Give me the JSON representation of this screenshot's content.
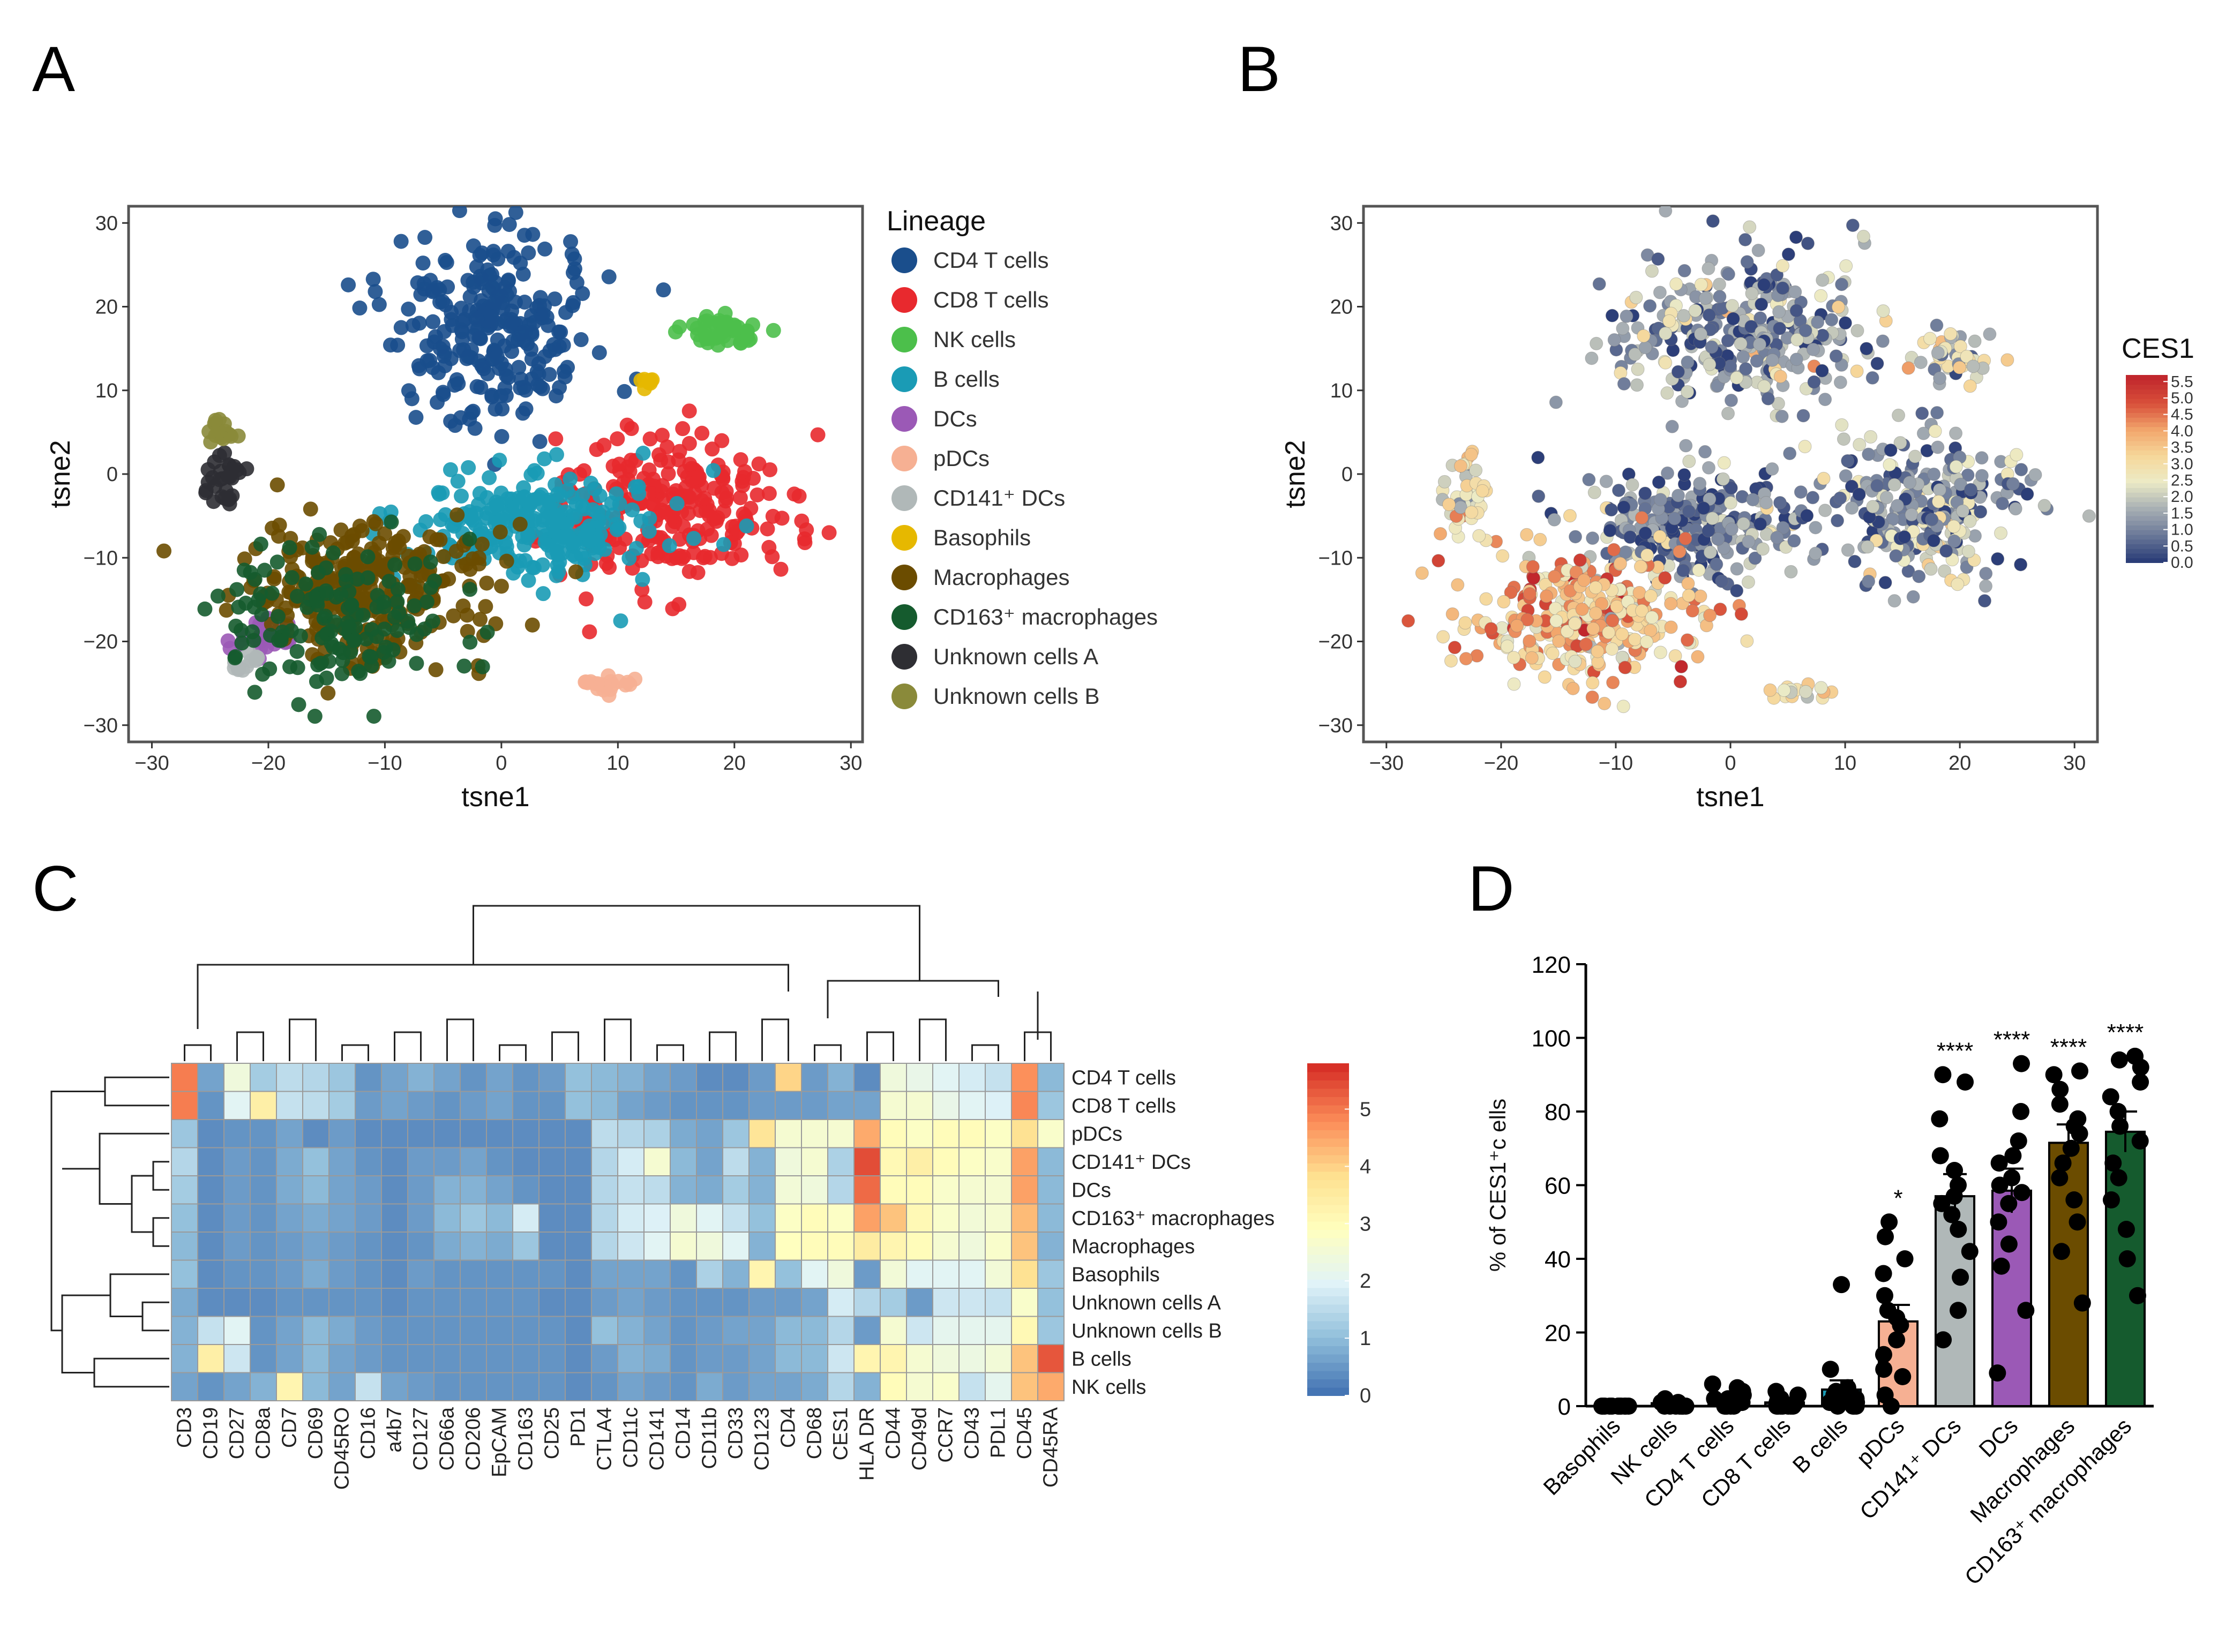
{
  "panels": {
    "a": {
      "letter": "A"
    },
    "b": {
      "letter": "B"
    },
    "c": {
      "letter": "C"
    },
    "d": {
      "letter": "D"
    }
  },
  "chart_data": [
    {
      "id": "A",
      "type": "scatter",
      "title": "",
      "xlabel": "tsne1",
      "ylabel": "tsne2",
      "xlim": [
        -32,
        31
      ],
      "ylim": [
        -32,
        32
      ],
      "xticks": [
        -30,
        -20,
        -10,
        0,
        10,
        20,
        30
      ],
      "yticks": [
        -30,
        -20,
        -10,
        0,
        10,
        20,
        30
      ],
      "legend_title": "Lineage",
      "legend_position": "right",
      "clusters": [
        {
          "name": "CD4 T cells",
          "color": "#1a4e8c",
          "cx": -1,
          "cy": 17,
          "rx": 10,
          "ry": 12,
          "n": 260
        },
        {
          "name": "CD8 T cells",
          "color": "#e8292e",
          "cx": 15,
          "cy": -4,
          "rx": 11,
          "ry": 10,
          "n": 240
        },
        {
          "name": "NK cells",
          "color": "#4cbf4b",
          "cx": 19,
          "cy": 17,
          "rx": 4,
          "ry": 2.5,
          "n": 50
        },
        {
          "name": "B cells",
          "color": "#1a9bb5",
          "cx": 3,
          "cy": -6,
          "rx": 12,
          "ry": 7,
          "n": 240
        },
        {
          "name": "DCs",
          "color": "#9b59b6",
          "cx": -20,
          "cy": -20,
          "rx": 3,
          "ry": 3,
          "n": 30
        },
        {
          "name": "pDCs",
          "color": "#f6b093",
          "cx": 9,
          "cy": -25,
          "rx": 2.5,
          "ry": 1.2,
          "n": 20
        },
        {
          "name": "CD141⁺ DCs",
          "color": "#b0b8b8",
          "cx": -22,
          "cy": -22,
          "rx": 1.5,
          "ry": 1.5,
          "n": 10
        },
        {
          "name": "Basophils",
          "color": "#e6b800",
          "cx": 12.5,
          "cy": 11,
          "rx": 1.2,
          "ry": 0.8,
          "n": 8
        },
        {
          "name": "Macrophages",
          "color": "#6b4c00",
          "cx": -12,
          "cy": -14,
          "rx": 12,
          "ry": 9,
          "n": 300
        },
        {
          "name": "CD163⁺ macrophages",
          "color": "#155b2e",
          "cx": -14,
          "cy": -17,
          "rx": 10,
          "ry": 10,
          "n": 140
        },
        {
          "name": "Unknown cells A",
          "color": "#2e2e33",
          "cx": -24,
          "cy": -1,
          "rx": 2,
          "ry": 3,
          "n": 30
        },
        {
          "name": "Unknown cells B",
          "color": "#8a8a3a",
          "cx": -24,
          "cy": 5,
          "rx": 1.5,
          "ry": 2,
          "n": 18
        }
      ]
    },
    {
      "id": "B",
      "type": "scatter",
      "title": "",
      "xlabel": "tsne1",
      "ylabel": "tsne2",
      "xlim": [
        -32,
        32
      ],
      "ylim": [
        -32,
        32
      ],
      "xticks": [
        -30,
        -20,
        -10,
        0,
        10,
        20,
        30
      ],
      "yticks": [
        -30,
        -20,
        -10,
        0,
        10,
        20,
        30
      ],
      "colorbar_title": "CES1",
      "colorbar_ticks": [
        "0.0",
        "0.5",
        "1.0",
        "1.5",
        "2.0",
        "2.5",
        "3.0",
        "3.5",
        "4.0",
        "4.5",
        "5.0",
        "5.5"
      ],
      "colorbar_range": [
        0,
        5.7
      ],
      "colormap": [
        "#2c3e78",
        "#6c7a99",
        "#a9b0b4",
        "#ecebc6",
        "#f6d79a",
        "#f2a66c",
        "#d8503a",
        "#c1272d"
      ],
      "regions": [
        {
          "name": "upper cluster",
          "cx": 1,
          "cy": 17,
          "rx": 12,
          "ry": 11,
          "mean": 1.2,
          "n": 320
        },
        {
          "name": "right cluster",
          "cx": 17,
          "cy": -4,
          "rx": 10,
          "ry": 10,
          "mean": 1.3,
          "n": 260
        },
        {
          "name": "middle cluster",
          "cx": -3,
          "cy": -6,
          "rx": 12,
          "ry": 7,
          "mean": 0.8,
          "n": 260
        },
        {
          "name": "lower-left cluster",
          "cx": -12,
          "cy": -17,
          "rx": 11,
          "ry": 9,
          "mean": 3.6,
          "n": 320
        },
        {
          "name": "left edge",
          "cx": -23,
          "cy": -3,
          "rx": 2,
          "ry": 6,
          "mean": 2.5,
          "n": 50
        },
        {
          "name": "upper-right small",
          "cx": 19,
          "cy": 14,
          "rx": 4,
          "ry": 3,
          "mean": 1.8,
          "n": 50
        },
        {
          "name": "bottom small",
          "cx": 6,
          "cy": -26,
          "rx": 3,
          "ry": 1.2,
          "mean": 2.8,
          "n": 18
        }
      ]
    },
    {
      "id": "C",
      "type": "heatmap",
      "title": "",
      "columns": [
        "CD3",
        "CD19",
        "CD27",
        "CD8a",
        "CD7",
        "CD69",
        "CD45RO",
        "CD16",
        "a4b7",
        "CD127",
        "CD66a",
        "CD206",
        "EpCAM",
        "CD163",
        "CD25",
        "PD1",
        "CTLA4",
        "CD11c",
        "CD141",
        "CD14",
        "CD11b",
        "CD33",
        "CD123",
        "CD4",
        "CD68",
        "CES1",
        "HLA DR",
        "CD44",
        "CD49d",
        "CCR7",
        "CD43",
        "PDL1",
        "CD45",
        "CD45RA"
      ],
      "rows": [
        "CD4 T cells",
        "CD8 T cells",
        "pDCs",
        "CD141⁺ DCs",
        "DCs",
        "CD163⁺ macrophages",
        "Macrophages",
        "Basophils",
        "Unknown cells A",
        "Unknown cells B",
        "B cells",
        "NK cells"
      ],
      "values": [
        [
          5.0,
          0.6,
          2.4,
          1.2,
          1.5,
          1.4,
          1.1,
          0.4,
          0.6,
          0.8,
          0.6,
          0.4,
          0.6,
          0.4,
          0.5,
          1.0,
          0.9,
          0.8,
          0.6,
          0.5,
          0.3,
          0.3,
          0.5,
          4.0,
          0.5,
          0.8,
          0.3,
          2.4,
          2.2,
          2.0,
          1.8,
          1.6,
          4.8,
          0.9
        ],
        [
          5.0,
          0.4,
          2.0,
          3.4,
          1.6,
          1.5,
          1.2,
          0.5,
          0.6,
          0.5,
          0.4,
          0.5,
          0.6,
          0.4,
          0.4,
          1.0,
          0.9,
          0.6,
          0.5,
          0.4,
          0.4,
          0.4,
          0.5,
          0.5,
          0.5,
          0.6,
          0.6,
          2.6,
          2.6,
          2.2,
          2.0,
          1.9,
          4.9,
          1.1
        ],
        [
          1.1,
          0.3,
          0.4,
          0.4,
          0.6,
          0.3,
          0.5,
          0.3,
          0.3,
          0.3,
          0.3,
          0.3,
          0.3,
          0.3,
          0.3,
          0.3,
          1.5,
          1.4,
          1.3,
          0.7,
          0.6,
          1.1,
          3.7,
          2.6,
          2.6,
          2.6,
          4.5,
          3.0,
          2.8,
          3.0,
          3.0,
          2.8,
          3.8,
          2.7
        ],
        [
          1.4,
          0.3,
          0.5,
          0.4,
          0.7,
          1.0,
          0.6,
          0.4,
          0.3,
          0.5,
          0.5,
          0.6,
          0.4,
          0.3,
          0.3,
          0.3,
          1.4,
          1.8,
          2.6,
          0.9,
          0.6,
          1.5,
          0.8,
          2.4,
          2.6,
          1.3,
          5.5,
          3.1,
          3.4,
          3.0,
          2.8,
          2.7,
          4.6,
          0.9
        ],
        [
          1.2,
          0.3,
          0.5,
          0.4,
          0.7,
          0.9,
          0.6,
          0.5,
          0.3,
          0.5,
          0.8,
          0.8,
          0.6,
          0.4,
          0.3,
          0.3,
          1.4,
          1.6,
          1.5,
          0.8,
          0.7,
          1.2,
          0.8,
          2.5,
          2.4,
          1.4,
          5.2,
          3.0,
          3.0,
          2.7,
          2.6,
          2.6,
          4.6,
          0.9
        ],
        [
          1.0,
          0.3,
          0.5,
          0.4,
          0.6,
          0.7,
          0.6,
          0.5,
          0.3,
          0.5,
          0.9,
          1.1,
          0.9,
          1.8,
          0.3,
          0.3,
          1.4,
          1.8,
          1.9,
          2.4,
          2.0,
          1.6,
          1.0,
          2.8,
          3.0,
          2.8,
          4.6,
          4.2,
          3.1,
          2.7,
          2.5,
          2.6,
          4.3,
          0.9
        ],
        [
          0.9,
          0.3,
          0.5,
          0.4,
          0.5,
          0.6,
          0.5,
          0.4,
          0.3,
          0.4,
          0.7,
          0.8,
          0.7,
          1.1,
          0.3,
          0.3,
          1.4,
          1.7,
          2.0,
          2.6,
          2.4,
          2.0,
          0.8,
          2.9,
          3.0,
          3.0,
          3.5,
          3.2,
          3.0,
          2.6,
          2.4,
          2.7,
          4.2,
          0.8
        ],
        [
          1.0,
          0.3,
          0.4,
          0.4,
          0.5,
          0.7,
          0.5,
          0.4,
          0.3,
          0.5,
          0.4,
          0.4,
          0.4,
          0.4,
          0.4,
          0.3,
          0.6,
          0.6,
          0.6,
          0.4,
          1.3,
          0.8,
          3.2,
          1.0,
          2.0,
          2.4,
          0.5,
          2.5,
          2.0,
          2.0,
          2.0,
          2.5,
          3.8,
          1.1
        ],
        [
          0.7,
          0.3,
          0.3,
          0.3,
          0.4,
          0.4,
          0.4,
          0.4,
          0.3,
          0.4,
          0.4,
          0.4,
          0.4,
          0.4,
          0.3,
          0.3,
          0.5,
          0.6,
          0.5,
          0.4,
          0.4,
          0.4,
          0.5,
          0.5,
          0.6,
          1.8,
          1.4,
          1.2,
          0.5,
          1.7,
          1.7,
          1.6,
          2.7,
          1.0
        ],
        [
          0.8,
          1.6,
          2.0,
          0.4,
          0.6,
          0.9,
          0.7,
          0.5,
          0.4,
          0.4,
          0.4,
          0.4,
          0.4,
          0.4,
          0.4,
          0.3,
          1.0,
          0.8,
          0.6,
          0.4,
          0.5,
          0.6,
          0.6,
          0.9,
          0.9,
          1.4,
          0.5,
          2.6,
          1.7,
          2.1,
          2.1,
          2.1,
          3.1,
          1.1
        ],
        [
          0.8,
          3.4,
          1.7,
          0.4,
          0.6,
          0.9,
          0.6,
          0.5,
          0.4,
          0.4,
          0.4,
          0.4,
          0.4,
          0.4,
          0.4,
          0.3,
          0.5,
          0.8,
          0.7,
          0.4,
          0.5,
          0.5,
          0.6,
          0.9,
          0.9,
          1.7,
          3.2,
          3.2,
          2.6,
          2.4,
          2.3,
          2.5,
          4.2,
          5.4
        ],
        [
          0.6,
          0.4,
          0.6,
          0.8,
          3.2,
          0.9,
          0.6,
          1.6,
          0.6,
          0.5,
          0.4,
          0.4,
          0.4,
          0.4,
          0.4,
          0.3,
          0.4,
          0.6,
          0.5,
          0.4,
          0.7,
          0.5,
          0.6,
          0.6,
          0.7,
          1.4,
          0.8,
          3.0,
          2.6,
          2.7,
          1.6,
          2.1,
          4.2,
          4.5
        ]
      ],
      "colorbar_ticks": [
        "0",
        "1",
        "2",
        "3",
        "4",
        "5"
      ],
      "colorbar_range": [
        0,
        5.8
      ],
      "colormap": [
        "#4575b4",
        "#91bfdb",
        "#e0f3f8",
        "#ffffbf",
        "#fee090",
        "#fc8d59",
        "#d73027"
      ]
    },
    {
      "id": "D",
      "type": "bar",
      "title": "",
      "xlabel": "",
      "ylabel": "% of CES1⁺c ells",
      "ylim": [
        0,
        120
      ],
      "yticks": [
        0,
        20,
        40,
        60,
        80,
        100,
        120
      ],
      "categories": [
        "Basophils",
        "NK cells",
        "CD4 T cells",
        "CD8 T cells",
        "B cells",
        "pDCs",
        "CD141⁺ DCs",
        "DCs",
        "Macrophages",
        "CD163⁺ macrophages"
      ],
      "values": [
        0.5,
        0.8,
        1.5,
        1.0,
        4.5,
        23,
        57,
        58.5,
        71.5,
        74.5
      ],
      "errors": [
        0.3,
        0.4,
        0.8,
        0.5,
        2.5,
        4.5,
        6,
        6,
        5,
        5.5
      ],
      "bar_colors": [
        "#2e2e33",
        "#2e2e33",
        "#2e2e33",
        "#2e2e33",
        "#1a9bb5",
        "#f6b093",
        "#b0b8b8",
        "#9b59b6",
        "#6b4c00",
        "#155b2e"
      ],
      "significance": [
        "",
        "",
        "",
        "",
        "",
        "*",
        "****",
        "****",
        "****",
        "****"
      ],
      "points": [
        [
          0,
          0,
          0,
          0,
          0,
          0,
          0,
          0,
          0,
          0,
          0,
          0
        ],
        [
          0,
          0,
          0,
          0,
          1,
          1,
          0,
          0,
          2,
          0,
          0,
          1
        ],
        [
          0,
          0,
          1,
          2,
          3,
          5,
          6,
          0,
          0,
          1,
          2,
          0,
          4,
          1
        ],
        [
          0,
          0,
          0,
          1,
          2,
          3,
          0,
          0,
          1,
          0,
          2,
          4,
          0
        ],
        [
          0,
          0,
          1,
          2,
          3,
          5,
          10,
          33,
          1,
          0,
          4,
          2,
          0
        ],
        [
          0,
          3,
          8,
          10,
          14,
          18,
          22,
          26,
          30,
          36,
          40,
          46,
          50,
          24
        ],
        [
          18,
          26,
          35,
          42,
          48,
          52,
          57,
          60,
          64,
          68,
          78,
          88,
          90,
          55
        ],
        [
          9,
          26,
          38,
          44,
          50,
          55,
          58,
          62,
          66,
          68,
          72,
          80,
          93,
          60
        ],
        [
          28,
          42,
          50,
          56,
          62,
          66,
          70,
          74,
          78,
          82,
          86,
          90,
          91,
          76
        ],
        [
          30,
          40,
          48,
          56,
          62,
          66,
          72,
          76,
          80,
          84,
          88,
          92,
          95,
          94
        ]
      ]
    }
  ]
}
